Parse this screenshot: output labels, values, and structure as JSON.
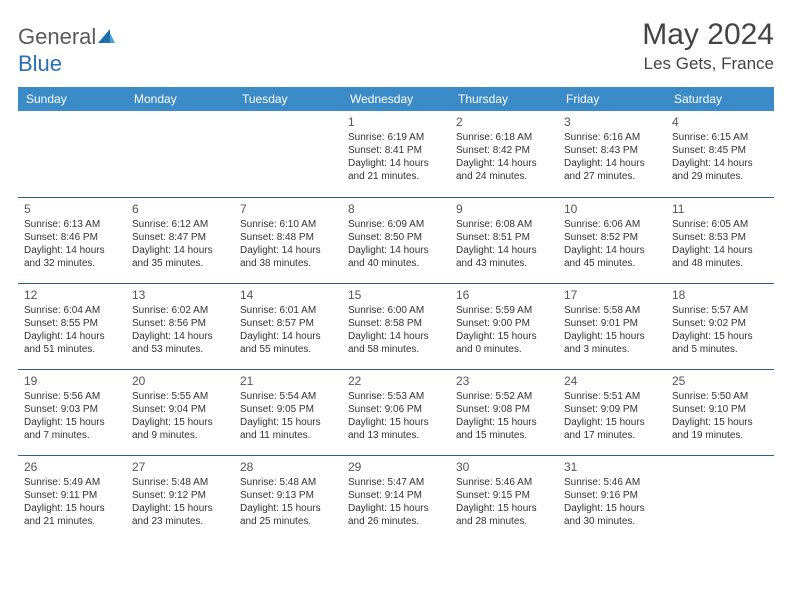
{
  "brand": {
    "part1": "General",
    "part2": "Blue"
  },
  "title": "May 2024",
  "location": "Les Gets, France",
  "header_bg": "#3b8bc9",
  "header_fg": "#ffffff",
  "cell_border": "#2e5f8f",
  "weekdays": [
    "Sunday",
    "Monday",
    "Tuesday",
    "Wednesday",
    "Thursday",
    "Friday",
    "Saturday"
  ],
  "weeks": [
    [
      {
        "n": "",
        "sr": "",
        "ss": "",
        "d1": "",
        "d2": ""
      },
      {
        "n": "",
        "sr": "",
        "ss": "",
        "d1": "",
        "d2": ""
      },
      {
        "n": "",
        "sr": "",
        "ss": "",
        "d1": "",
        "d2": ""
      },
      {
        "n": "1",
        "sr": "Sunrise: 6:19 AM",
        "ss": "Sunset: 8:41 PM",
        "d1": "Daylight: 14 hours",
        "d2": "and 21 minutes."
      },
      {
        "n": "2",
        "sr": "Sunrise: 6:18 AM",
        "ss": "Sunset: 8:42 PM",
        "d1": "Daylight: 14 hours",
        "d2": "and 24 minutes."
      },
      {
        "n": "3",
        "sr": "Sunrise: 6:16 AM",
        "ss": "Sunset: 8:43 PM",
        "d1": "Daylight: 14 hours",
        "d2": "and 27 minutes."
      },
      {
        "n": "4",
        "sr": "Sunrise: 6:15 AM",
        "ss": "Sunset: 8:45 PM",
        "d1": "Daylight: 14 hours",
        "d2": "and 29 minutes."
      }
    ],
    [
      {
        "n": "5",
        "sr": "Sunrise: 6:13 AM",
        "ss": "Sunset: 8:46 PM",
        "d1": "Daylight: 14 hours",
        "d2": "and 32 minutes."
      },
      {
        "n": "6",
        "sr": "Sunrise: 6:12 AM",
        "ss": "Sunset: 8:47 PM",
        "d1": "Daylight: 14 hours",
        "d2": "and 35 minutes."
      },
      {
        "n": "7",
        "sr": "Sunrise: 6:10 AM",
        "ss": "Sunset: 8:48 PM",
        "d1": "Daylight: 14 hours",
        "d2": "and 38 minutes."
      },
      {
        "n": "8",
        "sr": "Sunrise: 6:09 AM",
        "ss": "Sunset: 8:50 PM",
        "d1": "Daylight: 14 hours",
        "d2": "and 40 minutes."
      },
      {
        "n": "9",
        "sr": "Sunrise: 6:08 AM",
        "ss": "Sunset: 8:51 PM",
        "d1": "Daylight: 14 hours",
        "d2": "and 43 minutes."
      },
      {
        "n": "10",
        "sr": "Sunrise: 6:06 AM",
        "ss": "Sunset: 8:52 PM",
        "d1": "Daylight: 14 hours",
        "d2": "and 45 minutes."
      },
      {
        "n": "11",
        "sr": "Sunrise: 6:05 AM",
        "ss": "Sunset: 8:53 PM",
        "d1": "Daylight: 14 hours",
        "d2": "and 48 minutes."
      }
    ],
    [
      {
        "n": "12",
        "sr": "Sunrise: 6:04 AM",
        "ss": "Sunset: 8:55 PM",
        "d1": "Daylight: 14 hours",
        "d2": "and 51 minutes."
      },
      {
        "n": "13",
        "sr": "Sunrise: 6:02 AM",
        "ss": "Sunset: 8:56 PM",
        "d1": "Daylight: 14 hours",
        "d2": "and 53 minutes."
      },
      {
        "n": "14",
        "sr": "Sunrise: 6:01 AM",
        "ss": "Sunset: 8:57 PM",
        "d1": "Daylight: 14 hours",
        "d2": "and 55 minutes."
      },
      {
        "n": "15",
        "sr": "Sunrise: 6:00 AM",
        "ss": "Sunset: 8:58 PM",
        "d1": "Daylight: 14 hours",
        "d2": "and 58 minutes."
      },
      {
        "n": "16",
        "sr": "Sunrise: 5:59 AM",
        "ss": "Sunset: 9:00 PM",
        "d1": "Daylight: 15 hours",
        "d2": "and 0 minutes."
      },
      {
        "n": "17",
        "sr": "Sunrise: 5:58 AM",
        "ss": "Sunset: 9:01 PM",
        "d1": "Daylight: 15 hours",
        "d2": "and 3 minutes."
      },
      {
        "n": "18",
        "sr": "Sunrise: 5:57 AM",
        "ss": "Sunset: 9:02 PM",
        "d1": "Daylight: 15 hours",
        "d2": "and 5 minutes."
      }
    ],
    [
      {
        "n": "19",
        "sr": "Sunrise: 5:56 AM",
        "ss": "Sunset: 9:03 PM",
        "d1": "Daylight: 15 hours",
        "d2": "and 7 minutes."
      },
      {
        "n": "20",
        "sr": "Sunrise: 5:55 AM",
        "ss": "Sunset: 9:04 PM",
        "d1": "Daylight: 15 hours",
        "d2": "and 9 minutes."
      },
      {
        "n": "21",
        "sr": "Sunrise: 5:54 AM",
        "ss": "Sunset: 9:05 PM",
        "d1": "Daylight: 15 hours",
        "d2": "and 11 minutes."
      },
      {
        "n": "22",
        "sr": "Sunrise: 5:53 AM",
        "ss": "Sunset: 9:06 PM",
        "d1": "Daylight: 15 hours",
        "d2": "and 13 minutes."
      },
      {
        "n": "23",
        "sr": "Sunrise: 5:52 AM",
        "ss": "Sunset: 9:08 PM",
        "d1": "Daylight: 15 hours",
        "d2": "and 15 minutes."
      },
      {
        "n": "24",
        "sr": "Sunrise: 5:51 AM",
        "ss": "Sunset: 9:09 PM",
        "d1": "Daylight: 15 hours",
        "d2": "and 17 minutes."
      },
      {
        "n": "25",
        "sr": "Sunrise: 5:50 AM",
        "ss": "Sunset: 9:10 PM",
        "d1": "Daylight: 15 hours",
        "d2": "and 19 minutes."
      }
    ],
    [
      {
        "n": "26",
        "sr": "Sunrise: 5:49 AM",
        "ss": "Sunset: 9:11 PM",
        "d1": "Daylight: 15 hours",
        "d2": "and 21 minutes."
      },
      {
        "n": "27",
        "sr": "Sunrise: 5:48 AM",
        "ss": "Sunset: 9:12 PM",
        "d1": "Daylight: 15 hours",
        "d2": "and 23 minutes."
      },
      {
        "n": "28",
        "sr": "Sunrise: 5:48 AM",
        "ss": "Sunset: 9:13 PM",
        "d1": "Daylight: 15 hours",
        "d2": "and 25 minutes."
      },
      {
        "n": "29",
        "sr": "Sunrise: 5:47 AM",
        "ss": "Sunset: 9:14 PM",
        "d1": "Daylight: 15 hours",
        "d2": "and 26 minutes."
      },
      {
        "n": "30",
        "sr": "Sunrise: 5:46 AM",
        "ss": "Sunset: 9:15 PM",
        "d1": "Daylight: 15 hours",
        "d2": "and 28 minutes."
      },
      {
        "n": "31",
        "sr": "Sunrise: 5:46 AM",
        "ss": "Sunset: 9:16 PM",
        "d1": "Daylight: 15 hours",
        "d2": "and 30 minutes."
      },
      {
        "n": "",
        "sr": "",
        "ss": "",
        "d1": "",
        "d2": ""
      }
    ]
  ]
}
